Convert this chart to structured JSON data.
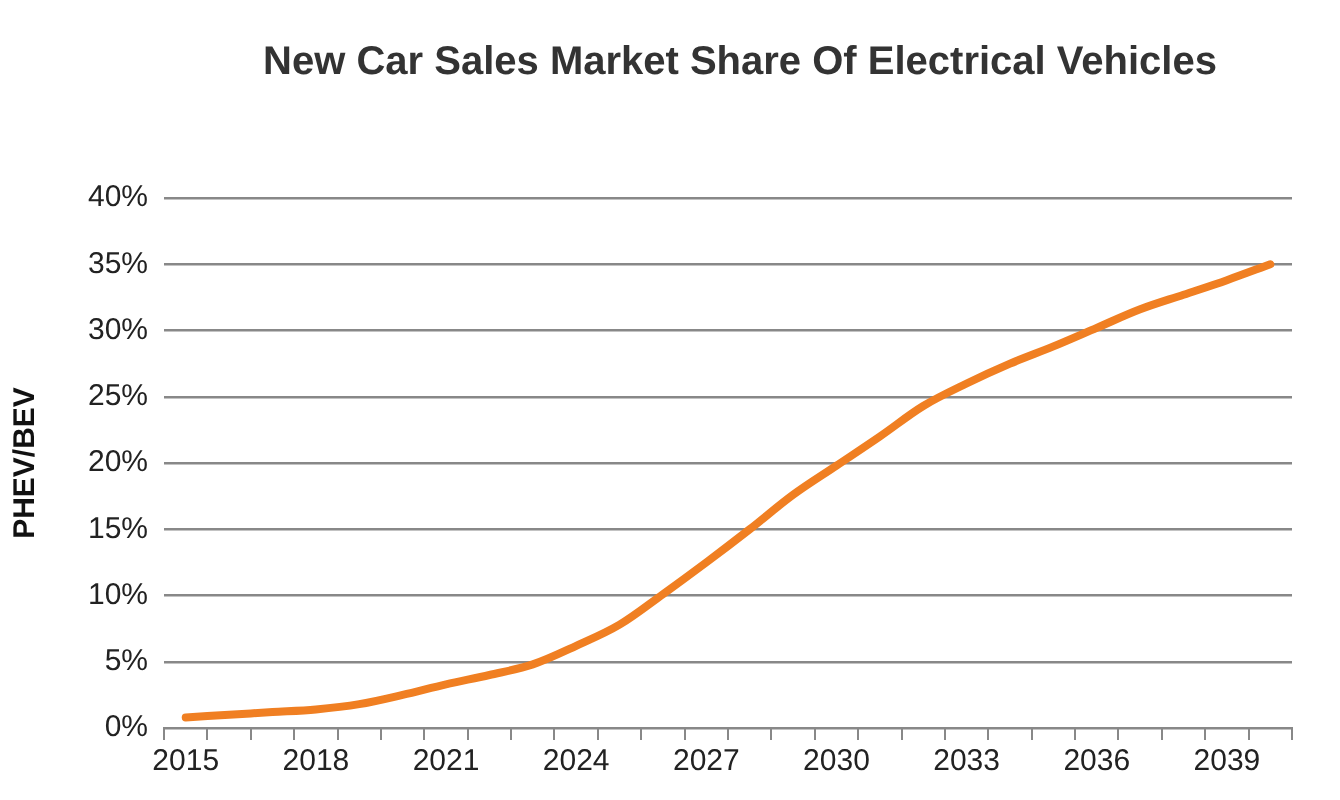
{
  "chart_data": {
    "type": "line",
    "title": "New Car Sales  Market Share Of Electrical Vehicles",
    "ylabel": "PHEV/BEV",
    "categories": [
      "2015",
      null,
      null,
      "2018",
      null,
      null,
      "2021",
      null,
      null,
      "2024",
      null,
      null,
      "2027",
      null,
      null,
      "2030",
      null,
      null,
      "2033",
      null,
      null,
      "2036",
      null,
      null,
      "2039",
      null
    ],
    "series": [
      {
        "color": "#f07f22",
        "values": [
          0.8,
          1.0,
          1.2,
          1.4,
          1.8,
          2.5,
          3.3,
          4.0,
          4.8,
          6.2,
          7.8,
          10.1,
          12.5,
          15,
          17.6,
          19.8,
          22,
          24.3,
          26,
          27.5,
          28.8,
          30.2,
          31.6,
          32.7,
          33.8,
          35
        ]
      }
    ],
    "ylim": [
      0,
      40
    ],
    "yticks": [
      {
        "value": 0,
        "label": "0%"
      },
      {
        "value": 5,
        "label": "5%"
      },
      {
        "value": 10,
        "label": "10%"
      },
      {
        "value": 15,
        "label": "15%"
      },
      {
        "value": 20,
        "label": "20%"
      },
      {
        "value": 25,
        "label": "25%"
      },
      {
        "value": 30,
        "label": "30%"
      },
      {
        "value": 35,
        "label": "35%"
      },
      {
        "value": 40,
        "label": "40%"
      }
    ],
    "grid": "y",
    "legend": false,
    "marker": "none",
    "line_style": "solid"
  }
}
